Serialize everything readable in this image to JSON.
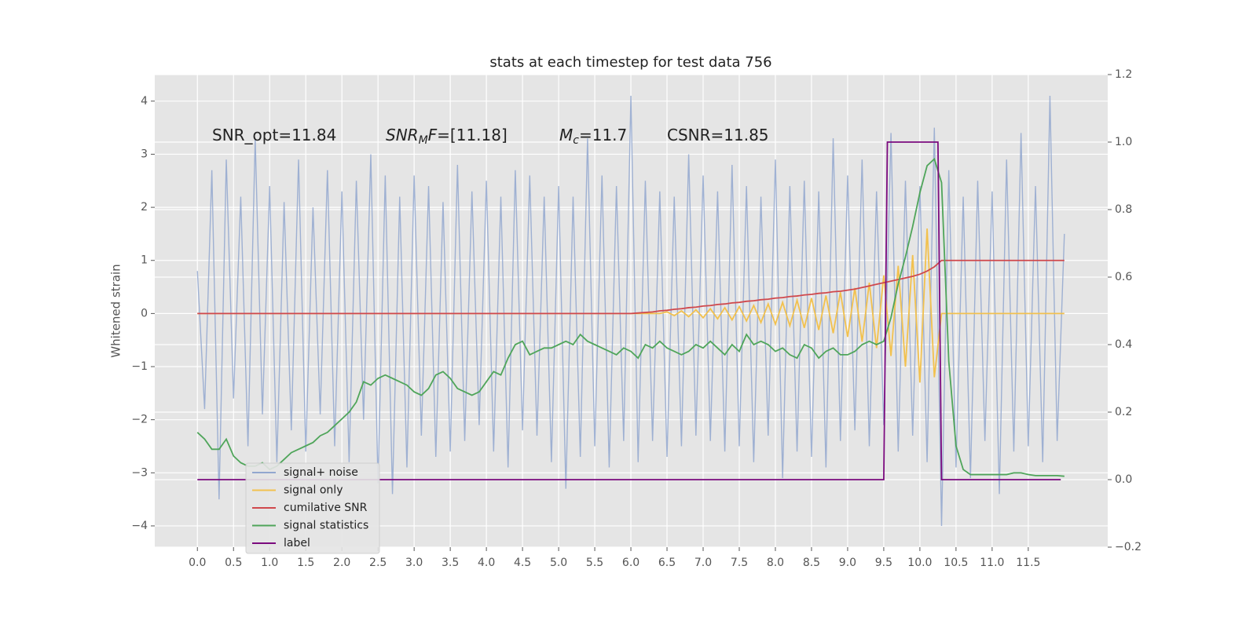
{
  "chart_data": {
    "type": "line",
    "title": "stats at each timestep for test data 756",
    "ylabel": "Whitened strain",
    "annotations": [
      [
        {
          "text": "SNR_opt=11.84"
        }
      ],
      [
        {
          "text": "SNR",
          "italic": true
        },
        {
          "text": "M",
          "italic": true,
          "sub": true
        },
        {
          "text": "F",
          "italic": true
        },
        {
          "text": "=[11.18]"
        }
      ],
      [
        {
          "text": "M",
          "italic": true
        },
        {
          "text": "c",
          "italic": true,
          "sub": true
        },
        {
          "text": "=11.7"
        }
      ],
      [
        {
          "text": "CSNR=11.85"
        }
      ]
    ],
    "xlim": [
      -0.59,
      12.6
    ],
    "ylim": [
      -4.4,
      4.5
    ],
    "y2lim": [
      -0.2,
      1.2
    ],
    "xticks": [
      {
        "value": 0,
        "label": "0.0"
      },
      0.5,
      {
        "value": 1,
        "label": "1.0"
      },
      1.5,
      {
        "value": 2,
        "label": "2.0"
      },
      2.5,
      {
        "value": 3,
        "label": "3.0"
      },
      3.5,
      {
        "value": 4,
        "label": "4.0"
      },
      4.5,
      {
        "value": 5,
        "label": "5.0"
      },
      5.5,
      {
        "value": 6,
        "label": "6.0"
      },
      6.5,
      {
        "value": 7,
        "label": "7.0"
      },
      7.5,
      {
        "value": 8,
        "label": "8.0"
      },
      8.5,
      {
        "value": 9,
        "label": "9.0"
      },
      9.5,
      {
        "value": 10,
        "label": "10.0"
      },
      10.5,
      {
        "value": 11,
        "label": "11.0"
      },
      11.5
    ],
    "yticks": [
      {
        "value": -4,
        "label": "−4"
      },
      {
        "value": -3,
        "label": "−3"
      },
      {
        "value": -2,
        "label": "−2"
      },
      {
        "value": -1,
        "label": "−1"
      },
      0,
      1,
      2,
      3,
      4
    ],
    "y2ticks": [
      {
        "value": -0.2,
        "label": "−0.2"
      },
      {
        "value": 0,
        "label": "0.0"
      },
      0.2,
      0.4,
      0.6,
      0.8,
      {
        "value": 1,
        "label": "1.0"
      },
      1.2
    ],
    "grid": true,
    "legend": "lower left",
    "x": [
      0,
      0.1,
      0.2,
      0.3,
      0.4,
      0.5,
      0.6,
      0.7,
      0.8,
      0.9,
      1,
      1.1,
      1.2,
      1.3,
      1.4,
      1.5,
      1.6,
      1.7,
      1.8,
      1.9,
      2,
      2.1,
      2.2,
      2.3,
      2.4,
      2.5,
      2.6,
      2.7,
      2.8,
      2.9,
      3,
      3.1,
      3.2,
      3.3,
      3.4,
      3.5,
      3.6,
      3.7,
      3.8,
      3.9,
      4,
      4.1,
      4.2,
      4.3,
      4.4,
      4.5,
      4.6,
      4.7,
      4.8,
      4.9,
      5,
      5.1,
      5.2,
      5.3,
      5.4,
      5.5,
      5.6,
      5.7,
      5.8,
      5.9,
      6,
      6.1,
      6.2,
      6.3,
      6.4,
      6.5,
      6.6,
      6.7,
      6.8,
      6.9,
      7,
      7.1,
      7.2,
      7.3,
      7.4,
      7.5,
      7.6,
      7.7,
      7.8,
      7.9,
      8,
      8.1,
      8.2,
      8.3,
      8.4,
      8.5,
      8.6,
      8.7,
      8.8,
      8.9,
      9,
      9.1,
      9.2,
      9.3,
      9.4,
      9.5,
      9.6,
      9.7,
      9.8,
      9.9,
      10,
      10.1,
      10.2,
      10.3,
      10.4,
      10.5,
      10.6,
      10.7,
      10.8,
      10.9,
      11,
      11.1,
      11.2,
      11.3,
      11.4,
      11.5,
      11.6,
      11.7,
      11.8,
      11.9,
      12
    ],
    "series": [
      {
        "name": "signal+ noise",
        "color": "#92a7cf",
        "values": [
          0.8,
          -1.8,
          2.7,
          -3.5,
          2.9,
          -1.6,
          2.2,
          -2.5,
          3.3,
          -1.9,
          2.4,
          -2.8,
          2.1,
          -2.2,
          2.9,
          -2.6,
          2.0,
          -1.9,
          2.7,
          -2.5,
          2.3,
          -2.8,
          2.5,
          -2.0,
          3.0,
          -3.2,
          2.6,
          -3.4,
          2.2,
          -2.9,
          2.6,
          -2.3,
          2.4,
          -2.7,
          2.1,
          -2.6,
          2.8,
          -2.4,
          2.3,
          -2.1,
          2.5,
          -2.6,
          2.2,
          -2.9,
          2.7,
          -2.2,
          2.6,
          -2.3,
          2.2,
          -2.8,
          2.4,
          -3.3,
          2.2,
          -2.7,
          3.3,
          -2.5,
          2.6,
          -2.9,
          2.4,
          -2.4,
          4.1,
          -2.8,
          2.5,
          -2.4,
          2.3,
          -2.7,
          2.2,
          -2.5,
          3.0,
          -2.3,
          2.6,
          -2.4,
          2.3,
          -2.6,
          2.8,
          -2.5,
          2.4,
          -2.8,
          2.2,
          -2.3,
          2.9,
          -3.1,
          2.4,
          -2.6,
          2.5,
          -2.7,
          2.3,
          -2.9,
          3.3,
          -2.4,
          2.6,
          -2.2,
          2.9,
          -2.5,
          2.3,
          -2.1,
          3.4,
          -2.6,
          2.5,
          -2.3,
          2.4,
          -2.8,
          3.5,
          -4.0,
          2.7,
          -2.9,
          2.2,
          -3.1,
          2.5,
          -2.4,
          2.3,
          -3.4,
          2.9,
          -2.6,
          3.4,
          -2.5,
          2.4,
          -2.8,
          4.1,
          -2.4,
          1.5
        ]
      },
      {
        "name": "signal only",
        "color": "#f2c14e",
        "values": [
          0,
          0,
          0,
          0,
          0,
          0,
          0,
          0,
          0,
          0,
          0,
          0,
          0,
          0,
          0,
          0,
          0,
          0,
          0,
          0,
          0,
          0,
          0,
          0,
          0,
          0,
          0,
          0,
          0,
          0,
          0,
          0,
          0,
          0,
          0,
          0,
          0,
          0,
          0,
          0,
          0,
          0,
          0,
          0,
          0,
          0,
          0,
          0,
          0,
          0,
          0,
          0,
          0,
          0,
          0,
          0,
          0,
          0,
          0,
          0,
          0,
          0,
          0,
          0,
          0,
          0.03,
          -0.04,
          0.05,
          -0.06,
          0.07,
          -0.08,
          0.09,
          -0.1,
          0.11,
          -0.12,
          0.13,
          -0.14,
          0.15,
          -0.17,
          0.18,
          -0.2,
          0.21,
          -0.23,
          0.25,
          -0.27,
          0.29,
          -0.31,
          0.34,
          -0.37,
          0.4,
          -0.44,
          0.48,
          -0.53,
          0.58,
          -0.65,
          0.72,
          -0.8,
          0.9,
          -1.0,
          1.1,
          -1.3,
          1.6,
          -1.2,
          0,
          0,
          0,
          0,
          0,
          0,
          0,
          0,
          0,
          0,
          0,
          0,
          0,
          0,
          0,
          0,
          0,
          0
        ]
      },
      {
        "name": "cumilative SNR",
        "color": "#d0484c",
        "values": [
          0,
          0,
          0,
          0,
          0,
          0,
          0,
          0,
          0,
          0,
          0,
          0,
          0,
          0,
          0,
          0,
          0,
          0,
          0,
          0,
          0,
          0,
          0,
          0,
          0,
          0,
          0,
          0,
          0,
          0,
          0,
          0,
          0,
          0,
          0,
          0,
          0,
          0,
          0,
          0,
          0,
          0,
          0,
          0,
          0,
          0,
          0,
          0,
          0,
          0,
          0,
          0,
          0,
          0,
          0,
          0,
          0,
          0,
          0,
          0,
          0,
          0.01,
          0.02,
          0.03,
          0.05,
          0.06,
          0.08,
          0.09,
          0.11,
          0.12,
          0.14,
          0.15,
          0.17,
          0.18,
          0.2,
          0.21,
          0.23,
          0.24,
          0.26,
          0.27,
          0.29,
          0.3,
          0.32,
          0.33,
          0.35,
          0.36,
          0.38,
          0.39,
          0.41,
          0.42,
          0.44,
          0.46,
          0.49,
          0.52,
          0.55,
          0.58,
          0.61,
          0.64,
          0.67,
          0.7,
          0.74,
          0.8,
          0.88,
          1.0,
          1.0,
          1.0,
          1.0,
          1.0,
          1.0,
          1.0,
          1.0,
          1.0,
          1.0,
          1.0,
          1.0,
          1.0,
          1.0,
          1.0,
          1.0,
          1.0,
          1.0
        ]
      },
      {
        "name": "signal statistics",
        "color": "#4fa55a",
        "axis": "y2",
        "values": [
          0.14,
          0.12,
          0.09,
          0.09,
          0.12,
          0.07,
          0.05,
          0.04,
          0.04,
          0.05,
          0.03,
          0.04,
          0.06,
          0.08,
          0.09,
          0.1,
          0.11,
          0.13,
          0.14,
          0.16,
          0.18,
          0.2,
          0.23,
          0.29,
          0.28,
          0.3,
          0.31,
          0.3,
          0.29,
          0.28,
          0.26,
          0.25,
          0.27,
          0.31,
          0.32,
          0.3,
          0.27,
          0.26,
          0.25,
          0.26,
          0.29,
          0.32,
          0.31,
          0.36,
          0.4,
          0.41,
          0.37,
          0.38,
          0.39,
          0.39,
          0.4,
          0.41,
          0.4,
          0.43,
          0.41,
          0.4,
          0.39,
          0.38,
          0.37,
          0.39,
          0.38,
          0.36,
          0.4,
          0.39,
          0.41,
          0.39,
          0.38,
          0.37,
          0.38,
          0.4,
          0.39,
          0.41,
          0.39,
          0.37,
          0.4,
          0.38,
          0.43,
          0.4,
          0.41,
          0.4,
          0.38,
          0.39,
          0.37,
          0.36,
          0.4,
          0.39,
          0.36,
          0.38,
          0.39,
          0.37,
          0.37,
          0.38,
          0.4,
          0.41,
          0.4,
          0.41,
          0.48,
          0.58,
          0.66,
          0.75,
          0.85,
          0.93,
          0.95,
          0.88,
          0.35,
          0.1,
          0.03,
          0.015,
          0.015,
          0.015,
          0.015,
          0.015,
          0.015,
          0.02,
          0.02,
          0.015,
          0.012,
          0.012,
          0.012,
          0.012,
          0.01
        ]
      },
      {
        "name": "label",
        "color": "#7b0a7e",
        "axis": "y2",
        "x": [
          0,
          9.5,
          9.55,
          10.25,
          10.3,
          11.95
        ],
        "values": [
          0,
          0,
          1,
          1,
          0,
          0
        ]
      }
    ]
  }
}
